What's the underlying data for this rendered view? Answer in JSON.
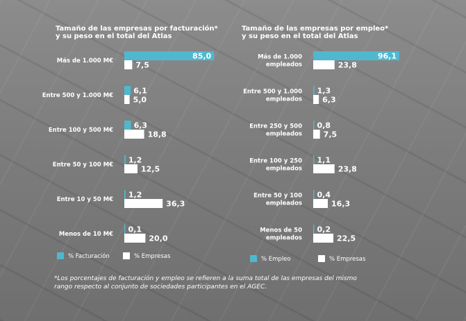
{
  "colors": {
    "primary": "#4fb8cf",
    "secondary": "#ffffff"
  },
  "footnote": "*Los porcentajes de facturación y empleo se refieren a la suma total de las empresas del mismo\nrango respecto al conjunto de sociedades participantes en el AGEC.",
  "chart_data": [
    {
      "type": "bar",
      "orientation": "horizontal",
      "title": [
        "Tamaño de las empresas por facturación*",
        "y su peso en el total del Atlas"
      ],
      "categories": [
        [
          "Más de 1.000 M€"
        ],
        [
          "Entre 500 y 1.000 M€"
        ],
        [
          "Entre 100 y 500 M€"
        ],
        [
          "Entre 50 y 100 M€"
        ],
        [
          "Entre 10 y 50 M€"
        ],
        [
          "Menos de 10 M€"
        ]
      ],
      "series": [
        {
          "name": "% Facturación",
          "values": [
            85.0,
            6.1,
            6.3,
            1.2,
            1.2,
            0.1
          ],
          "labels": [
            "85,0",
            "6,1",
            "6,3",
            "1,2",
            "1,2",
            "0,1"
          ]
        },
        {
          "name": "% Empresas",
          "values": [
            7.5,
            5.0,
            18.8,
            12.5,
            36.3,
            20.0
          ],
          "labels": [
            "7,5",
            "5,0",
            "18,8",
            "12,5",
            "36,3",
            "20,0"
          ]
        }
      ],
      "xlim": [
        0,
        100
      ],
      "legend": "bottom"
    },
    {
      "type": "bar",
      "orientation": "horizontal",
      "title": [
        "Tamaño de las empresas por empleo*",
        "y su peso en el total del Atlas"
      ],
      "categories": [
        [
          "Más de 1.000",
          "empleados"
        ],
        [
          "Entre 500 y 1.000",
          "empleados"
        ],
        [
          "Entre 250 y 500",
          "empleados"
        ],
        [
          "Entre 100 y 250",
          "empleados"
        ],
        [
          "Entre 50 y 100",
          "empleados"
        ],
        [
          "Menos de 50",
          "empleados"
        ]
      ],
      "series": [
        {
          "name": "% Empleo",
          "values": [
            96.1,
            1.3,
            0.8,
            1.1,
            0.4,
            0.2
          ],
          "labels": [
            "96,1",
            "1,3",
            "0,8",
            "1,1",
            "0,4",
            "0,2"
          ]
        },
        {
          "name": "% Empresas",
          "values": [
            23.8,
            6.3,
            7.5,
            23.8,
            16.3,
            22.5
          ],
          "labels": [
            "23,8",
            "6,3",
            "7,5",
            "23,8",
            "16,3",
            "22,5"
          ]
        }
      ],
      "xlim": [
        0,
        100
      ],
      "legend": "bottom"
    }
  ]
}
